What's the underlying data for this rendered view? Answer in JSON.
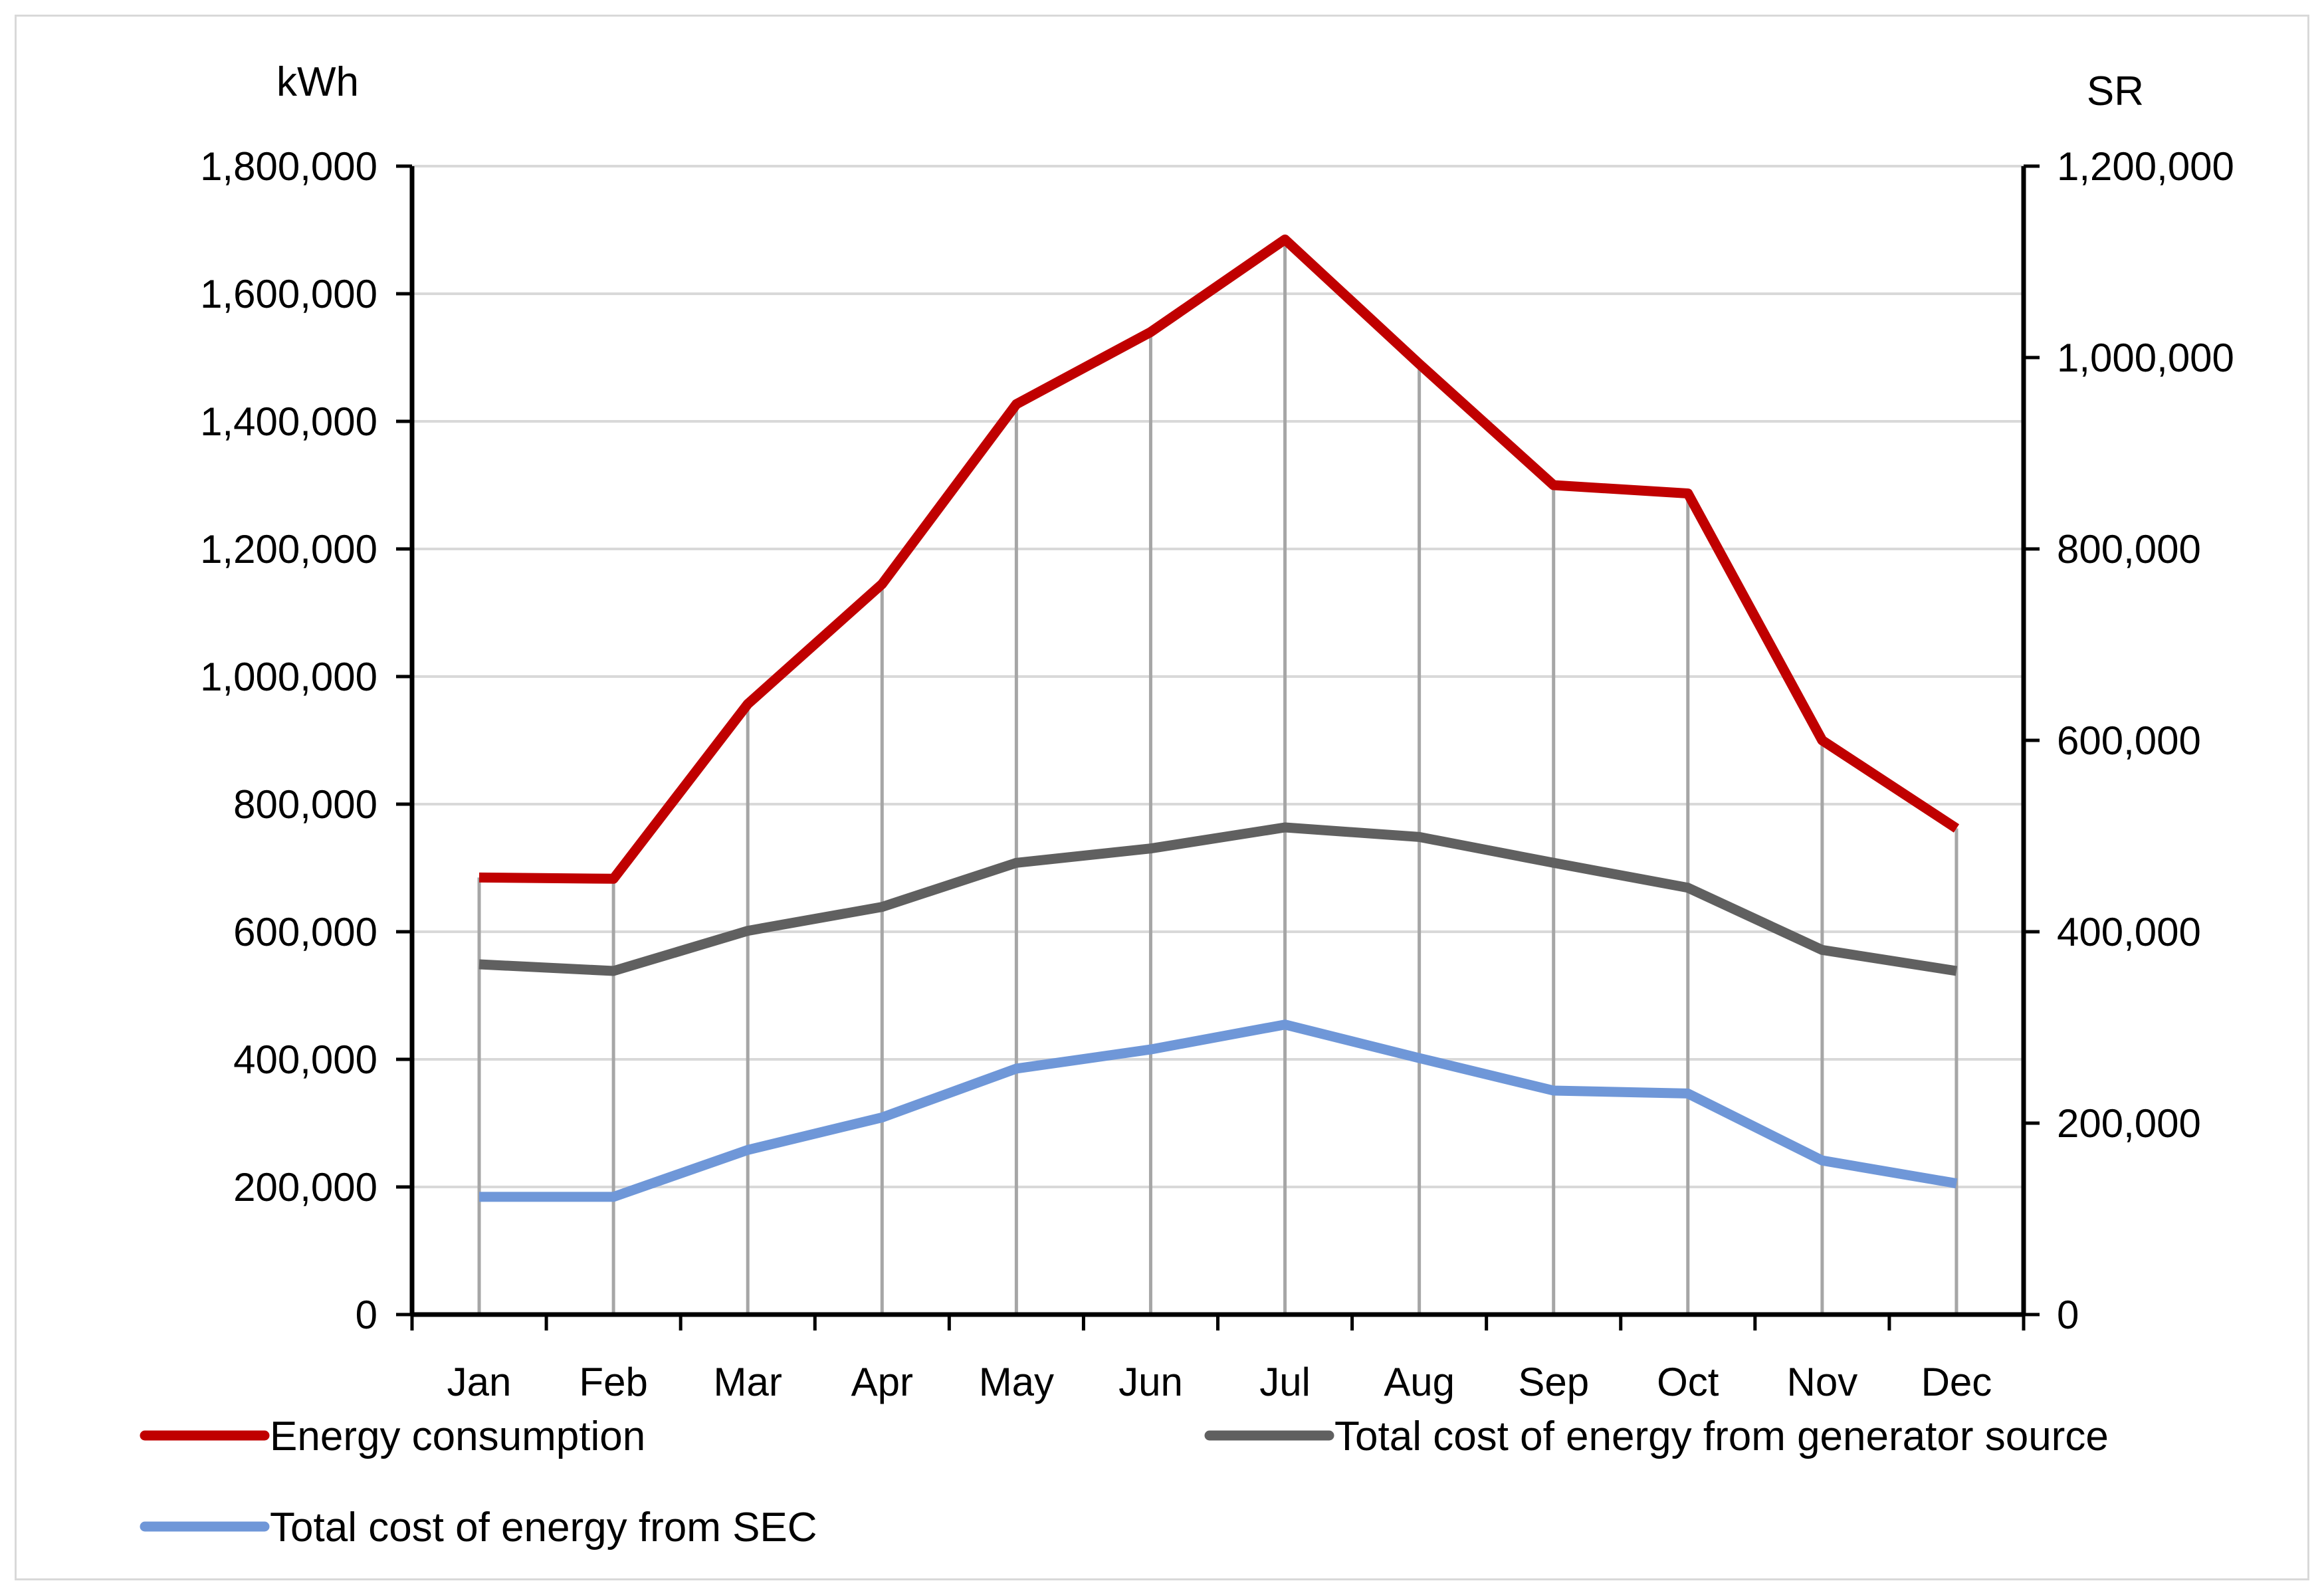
{
  "chart_data": {
    "type": "line",
    "title": "",
    "categories": [
      "Jan",
      "Feb",
      "Mar",
      "Apr",
      "May",
      "Jun",
      "Jul",
      "Aug",
      "Sep",
      "Oct",
      "Nov",
      "Dec"
    ],
    "y_left": {
      "label": "kWh",
      "min": 0,
      "max": 1800000,
      "step": 200000,
      "tick_labels": [
        "0",
        "200,000",
        "400,000",
        "600,000",
        "800,000",
        "1,000,000",
        "1,200,000",
        "1,400,000",
        "1,600,000",
        "1,800,000"
      ]
    },
    "y_right": {
      "label": "SR",
      "min": 0,
      "max": 1200000,
      "step": 200000,
      "tick_labels": [
        "0",
        "200,000",
        "400,000",
        "600,000",
        "800,000",
        "1,000,000",
        "1,200,000"
      ]
    },
    "grid": true,
    "drop_lines": true,
    "legend_position": "bottom",
    "series": [
      {
        "name": "Energy consumption",
        "axis": "left",
        "color": "#c00000",
        "values": [
          685000,
          683000,
          957000,
          1145000,
          1427000,
          1540000,
          1685000,
          1490000,
          1300000,
          1287000,
          900000,
          762000
        ]
      },
      {
        "name": "Total cost of energy from generator source",
        "axis": "right",
        "color": "#606060",
        "values": [
          366000,
          359000,
          401000,
          426000,
          472000,
          487000,
          509000,
          499000,
          472000,
          446000,
          381000,
          359000
        ]
      },
      {
        "name": "Total cost of energy from SEC",
        "axis": "right",
        "color": "#6f97d8",
        "values": [
          123000,
          123000,
          172000,
          206000,
          257000,
          277000,
          303000,
          268000,
          234000,
          231000,
          161000,
          137000
        ]
      }
    ]
  }
}
